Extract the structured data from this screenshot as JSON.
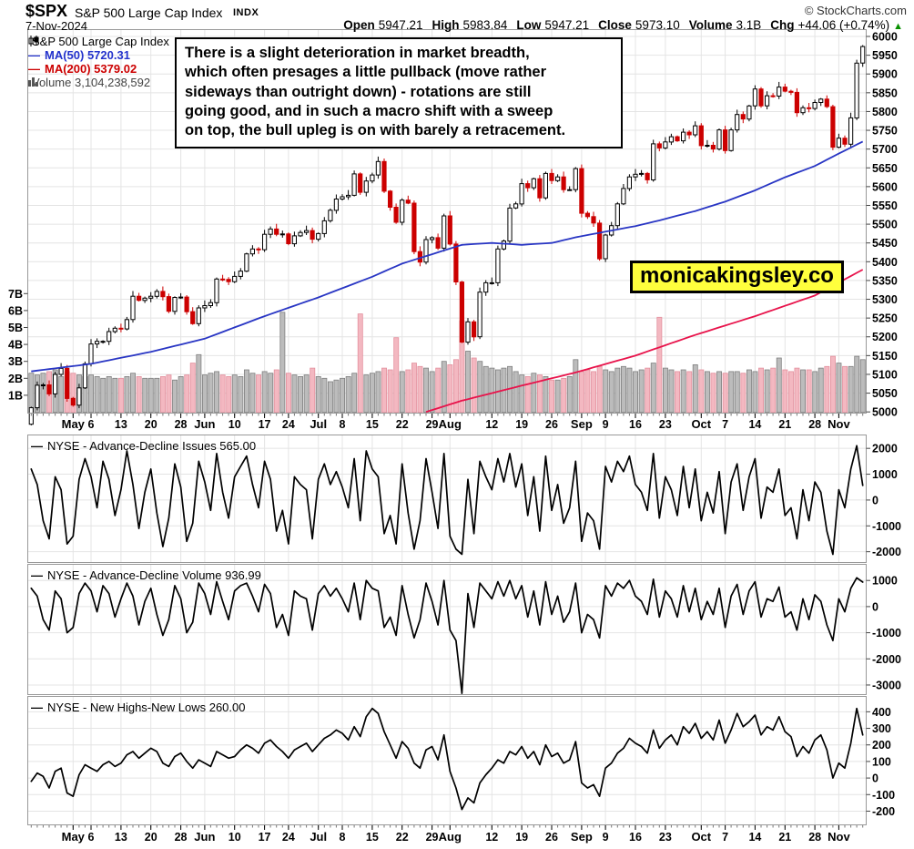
{
  "header": {
    "symbol": "$SPX",
    "name": "S&P 500 Large Cap Index",
    "exchange": "INDX",
    "credit": "© StockCharts.com",
    "date": "7-Nov-2024",
    "quote": [
      {
        "label": "Open",
        "value": "5947.21"
      },
      {
        "label": "High",
        "value": "5983.84"
      },
      {
        "label": "Low",
        "value": "5947.21"
      },
      {
        "label": "Close",
        "value": "5973.10"
      },
      {
        "label": "Volume",
        "value": "3.1B"
      },
      {
        "label": "Chg",
        "value": "+44.06 (+0.74%)"
      }
    ],
    "chg_direction": "up"
  },
  "legend": {
    "series_label": "S&P 500 Large Cap Index",
    "ma50_label": "MA(50) 5720.31",
    "ma200_label": "MA(200) 5379.02",
    "volume_label": "Volume 3,104,238,592"
  },
  "annotation": {
    "lines": [
      "There is a slight deterioration in market breadth,",
      "which often presages a little pullback (move rather",
      "sideways than outright down) - rotations are still",
      "going good, and in such a macro shift with a sweep",
      "on top, the bull upleg is on with barely a retracement."
    ]
  },
  "watermark": {
    "text": "monicakingsley.co",
    "bg": "#ffff3d"
  },
  "chart_data": {
    "type": "candlestick+volume with line indicator panels",
    "title": "$SPX S&P 500 Large Cap Index, 7-Nov-2024, daily",
    "n": 140,
    "x_ticks": [
      {
        "i": 7,
        "label": "May",
        "bold": true
      },
      {
        "i": 10,
        "label": "6"
      },
      {
        "i": 15,
        "label": "13"
      },
      {
        "i": 20,
        "label": "20"
      },
      {
        "i": 25,
        "label": "28"
      },
      {
        "i": 29,
        "label": "Jun",
        "bold": true
      },
      {
        "i": 34,
        "label": "10"
      },
      {
        "i": 39,
        "label": "17"
      },
      {
        "i": 43,
        "label": "24"
      },
      {
        "i": 48,
        "label": "Jul",
        "bold": true
      },
      {
        "i": 52,
        "label": "8"
      },
      {
        "i": 57,
        "label": "15"
      },
      {
        "i": 62,
        "label": "22"
      },
      {
        "i": 67,
        "label": "29"
      },
      {
        "i": 70,
        "label": "Aug",
        "bold": true
      },
      {
        "i": 77,
        "label": "12"
      },
      {
        "i": 82,
        "label": "19"
      },
      {
        "i": 87,
        "label": "26"
      },
      {
        "i": 92,
        "label": "Sep",
        "bold": true
      },
      {
        "i": 96,
        "label": "9"
      },
      {
        "i": 101,
        "label": "16"
      },
      {
        "i": 106,
        "label": "23"
      },
      {
        "i": 112,
        "label": "Oct",
        "bold": true
      },
      {
        "i": 116,
        "label": "7"
      },
      {
        "i": 121,
        "label": "14"
      },
      {
        "i": 126,
        "label": "21"
      },
      {
        "i": 131,
        "label": "28"
      },
      {
        "i": 135,
        "label": "Nov",
        "bold": true
      }
    ],
    "price_panel": {
      "ylim": [
        4998,
        6017
      ],
      "price_ticks": [
        6000,
        5950,
        5900,
        5850,
        5800,
        5750,
        5700,
        5650,
        5600,
        5550,
        5500,
        5450,
        5400,
        5350,
        5300,
        5250,
        5200,
        5150,
        5100,
        5050,
        5000
      ],
      "open_first": 4967,
      "closes": [
        5011,
        5071,
        5072,
        5048,
        5100,
        5116,
        5036,
        5018,
        5064,
        5128,
        5181,
        5188,
        5188,
        5214,
        5223,
        5221,
        5246,
        5308,
        5297,
        5303,
        5308,
        5321,
        5307,
        5268,
        5305,
        5306,
        5267,
        5235,
        5277,
        5283,
        5291,
        5354,
        5353,
        5347,
        5361,
        5375,
        5421,
        5434,
        5432,
        5473,
        5487,
        5473,
        5474,
        5448,
        5469,
        5478,
        5483,
        5460,
        5475,
        5509,
        5537,
        5567,
        5573,
        5577,
        5634,
        5585,
        5615,
        5631,
        5667,
        5588,
        5545,
        5505,
        5564,
        5556,
        5427,
        5399,
        5459,
        5464,
        5436,
        5522,
        5447,
        5346,
        5186,
        5240,
        5200,
        5319,
        5344,
        5344,
        5434,
        5455,
        5543,
        5554,
        5608,
        5597,
        5621,
        5570,
        5635,
        5616,
        5626,
        5592,
        5592,
        5648,
        5529,
        5520,
        5503,
        5408,
        5471,
        5496,
        5554,
        5595,
        5626,
        5633,
        5635,
        5618,
        5714,
        5703,
        5719,
        5733,
        5722,
        5745,
        5738,
        5762,
        5709,
        5710,
        5700,
        5751,
        5696,
        5751,
        5792,
        5780,
        5815,
        5860,
        5815,
        5842,
        5841,
        5865,
        5854,
        5851,
        5797,
        5810,
        5808,
        5824,
        5833,
        5813,
        5705,
        5729,
        5713,
        5783,
        5929,
        5973
      ],
      "ma50_value": 5720.31,
      "ma200_value": 5379.02,
      "ma50_anchors": [
        [
          0,
          5108
        ],
        [
          10,
          5128
        ],
        [
          20,
          5160
        ],
        [
          29,
          5195
        ],
        [
          39,
          5255
        ],
        [
          48,
          5305
        ],
        [
          57,
          5360
        ],
        [
          62,
          5395
        ],
        [
          67,
          5420
        ],
        [
          72,
          5445
        ],
        [
          77,
          5450
        ],
        [
          82,
          5445
        ],
        [
          87,
          5450
        ],
        [
          91,
          5465
        ],
        [
          96,
          5480
        ],
        [
          101,
          5495
        ],
        [
          105,
          5510
        ],
        [
          111,
          5535
        ],
        [
          116,
          5560
        ],
        [
          121,
          5590
        ],
        [
          126,
          5625
        ],
        [
          131,
          5655
        ],
        [
          134,
          5680
        ],
        [
          139,
          5720
        ]
      ],
      "ma200_anchors": [
        [
          66,
          5000
        ],
        [
          72,
          5030
        ],
        [
          82,
          5070
        ],
        [
          91,
          5105
        ],
        [
          101,
          5150
        ],
        [
          111,
          5205
        ],
        [
          121,
          5255
        ],
        [
          131,
          5310
        ],
        [
          139,
          5379
        ]
      ],
      "volume_ticks": [
        {
          "v": 7,
          "label": "7B"
        },
        {
          "v": 6,
          "label": "6B"
        },
        {
          "v": 5,
          "label": "5B"
        },
        {
          "v": 4,
          "label": "4B"
        },
        {
          "v": 3,
          "label": "3B"
        },
        {
          "v": 2,
          "label": "2B"
        },
        {
          "v": 1,
          "label": "1B"
        }
      ],
      "volume_billions": [
        2.3,
        2.2,
        2.3,
        2.4,
        2.5,
        2.1,
        2.4,
        2.3,
        2.2,
        2.1,
        2.2,
        2.1,
        2.0,
        2.1,
        2.0,
        2.0,
        2.1,
        2.3,
        2.1,
        2.0,
        2.0,
        2.0,
        2.1,
        2.2,
        1.9,
        2.1,
        2.2,
        2.9,
        3.4,
        2.2,
        2.3,
        2.4,
        2.2,
        2.1,
        2.2,
        2.1,
        2.5,
        2.3,
        2.2,
        2.4,
        2.3,
        2.5,
        5.9,
        2.3,
        2.2,
        2.1,
        2.2,
        2.6,
        2.1,
        2.0,
        1.8,
        1.9,
        2.0,
        2.1,
        2.3,
        5.8,
        2.2,
        2.3,
        2.4,
        2.6,
        2.5,
        4.4,
        2.4,
        2.5,
        2.9,
        2.7,
        2.6,
        2.4,
        2.6,
        3.0,
        2.8,
        3.1,
        5.4,
        3.6,
        3.2,
        3.0,
        2.7,
        2.6,
        2.5,
        2.6,
        2.7,
        2.4,
        2.2,
        2.1,
        2.3,
        2.2,
        2.1,
        1.9,
        1.9,
        2.0,
        2.1,
        3.1,
        2.4,
        2.5,
        2.4,
        2.7,
        2.5,
        2.4,
        2.6,
        2.7,
        2.6,
        2.4,
        2.5,
        2.6,
        2.9,
        5.6,
        2.6,
        2.5,
        2.4,
        2.5,
        2.4,
        2.8,
        2.5,
        2.4,
        2.3,
        2.4,
        2.3,
        2.4,
        2.4,
        2.3,
        2.5,
        2.4,
        2.6,
        2.5,
        2.6,
        3.2,
        2.5,
        2.4,
        2.6,
        2.5,
        2.5,
        2.4,
        2.6,
        2.7,
        3.3,
        2.9,
        2.7,
        2.7,
        3.3,
        3.1
      ]
    },
    "panels": [
      {
        "label": "NYSE - Advance-Decline Issues 565.00",
        "last_value": 565.0,
        "ylim": [
          -2400,
          2500
        ],
        "ticks": [
          2000,
          1000,
          0,
          -1000,
          -2000
        ],
        "values": [
          1200,
          600,
          -800,
          -1500,
          900,
          400,
          -1700,
          -1400,
          800,
          1600,
          900,
          -300,
          1500,
          800,
          -600,
          400,
          1900,
          600,
          -1100,
          300,
          1200,
          -500,
          -1800,
          -700,
          1400,
          500,
          -1600,
          -900,
          1500,
          700,
          -400,
          1800,
          300,
          -700,
          900,
          1300,
          1700,
          600,
          -300,
          1500,
          800,
          -1200,
          -400,
          -1700,
          900,
          600,
          400,
          -1500,
          800,
          1400,
          600,
          1100,
          500,
          -300,
          1600,
          -800,
          1900,
          1200,
          900,
          -1300,
          -600,
          -1700,
          1400,
          -500,
          -1900,
          -800,
          1600,
          300,
          -1100,
          1800,
          -1400,
          -1900,
          -2100,
          800,
          -1300,
          1500,
          900,
          400,
          1600,
          700,
          1800,
          500,
          1400,
          -600,
          900,
          -1200,
          1700,
          -400,
          600,
          -900,
          -300,
          1500,
          -1600,
          -500,
          -800,
          -1900,
          1300,
          700,
          1500,
          1100,
          1700,
          600,
          300,
          -400,
          1800,
          -700,
          900,
          400,
          -600,
          1300,
          -300,
          1200,
          -800,
          300,
          -500,
          1100,
          -1300,
          700,
          1400,
          -400,
          900,
          1600,
          -700,
          500,
          300,
          1200,
          -600,
          -300,
          -1500,
          400,
          -800,
          700,
          300,
          -1200,
          -2100,
          400,
          -300,
          1200,
          2100,
          565
        ]
      },
      {
        "label": "NYSE - Advance-Decline Volume 936.99",
        "last_value": 936.99,
        "ylim": [
          -3350,
          1600
        ],
        "ticks": [
          1000,
          0,
          -1000,
          -2000,
          -3000
        ],
        "values": [
          700,
          400,
          -500,
          -900,
          600,
          300,
          -1000,
          -800,
          500,
          900,
          600,
          -200,
          800,
          500,
          -400,
          300,
          900,
          400,
          -700,
          200,
          700,
          -300,
          -1100,
          -500,
          800,
          300,
          -1000,
          -600,
          900,
          500,
          -300,
          950,
          200,
          -500,
          600,
          800,
          900,
          400,
          -200,
          850,
          500,
          -800,
          -300,
          -1100,
          600,
          400,
          300,
          -900,
          500,
          800,
          400,
          700,
          300,
          -200,
          900,
          -500,
          1000,
          700,
          600,
          -800,
          -400,
          -1100,
          800,
          -300,
          -1200,
          -500,
          900,
          200,
          -700,
          1000,
          -900,
          -1300,
          -3320,
          500,
          -800,
          900,
          600,
          300,
          950,
          400,
          1000,
          300,
          800,
          -400,
          600,
          -700,
          950,
          -300,
          400,
          -600,
          -200,
          900,
          -1000,
          -300,
          -500,
          -1200,
          800,
          400,
          900,
          700,
          1000,
          400,
          200,
          -300,
          1050,
          -400,
          600,
          300,
          -400,
          800,
          -200,
          700,
          -500,
          200,
          -300,
          700,
          -800,
          400,
          850,
          -300,
          600,
          950,
          -400,
          300,
          200,
          750,
          -400,
          -200,
          -900,
          300,
          -500,
          450,
          200,
          -700,
          -1300,
          300,
          -200,
          700,
          1100,
          937
        ]
      },
      {
        "label": "NYSE - New Highs-New Lows 260.00",
        "last_value": 260.0,
        "ylim": [
          -280,
          490
        ],
        "ticks": [
          400,
          300,
          200,
          100,
          0,
          -100,
          -200
        ],
        "values": [
          -20,
          30,
          10,
          -60,
          40,
          60,
          -90,
          -110,
          20,
          80,
          60,
          40,
          80,
          100,
          70,
          90,
          140,
          160,
          120,
          150,
          180,
          160,
          90,
          70,
          130,
          150,
          100,
          60,
          110,
          90,
          70,
          160,
          140,
          120,
          130,
          170,
          200,
          180,
          150,
          210,
          230,
          190,
          160,
          120,
          170,
          190,
          210,
          160,
          200,
          240,
          260,
          290,
          270,
          230,
          310,
          250,
          370,
          420,
          390,
          280,
          200,
          120,
          220,
          180,
          90,
          60,
          170,
          190,
          110,
          260,
          40,
          -60,
          -190,
          -120,
          -150,
          -30,
          20,
          60,
          110,
          90,
          160,
          140,
          190,
          120,
          160,
          80,
          200,
          130,
          150,
          90,
          110,
          220,
          -30,
          -60,
          -40,
          -110,
          60,
          90,
          150,
          180,
          240,
          210,
          190,
          150,
          290,
          180,
          230,
          260,
          200,
          310,
          270,
          330,
          240,
          280,
          230,
          350,
          210,
          290,
          390,
          310,
          340,
          380,
          260,
          310,
          290,
          370,
          280,
          250,
          130,
          190,
          150,
          230,
          260,
          170,
          0,
          90,
          60,
          210,
          420,
          260
        ]
      }
    ],
    "colors": {
      "candle_up": "#000000",
      "candle_down": "#cc0000",
      "vol_up": "#bcbcbc",
      "vol_up_border": "#7f7f7f",
      "vol_down": "#f3b8c1",
      "vol_down_border": "#e38f9d",
      "ma50": "#2936c4",
      "ma200": "#e8134b",
      "grid": "#e4e4e4",
      "border": "#999999",
      "indicator_line": "#000000",
      "up_arrow": "#089000"
    }
  }
}
